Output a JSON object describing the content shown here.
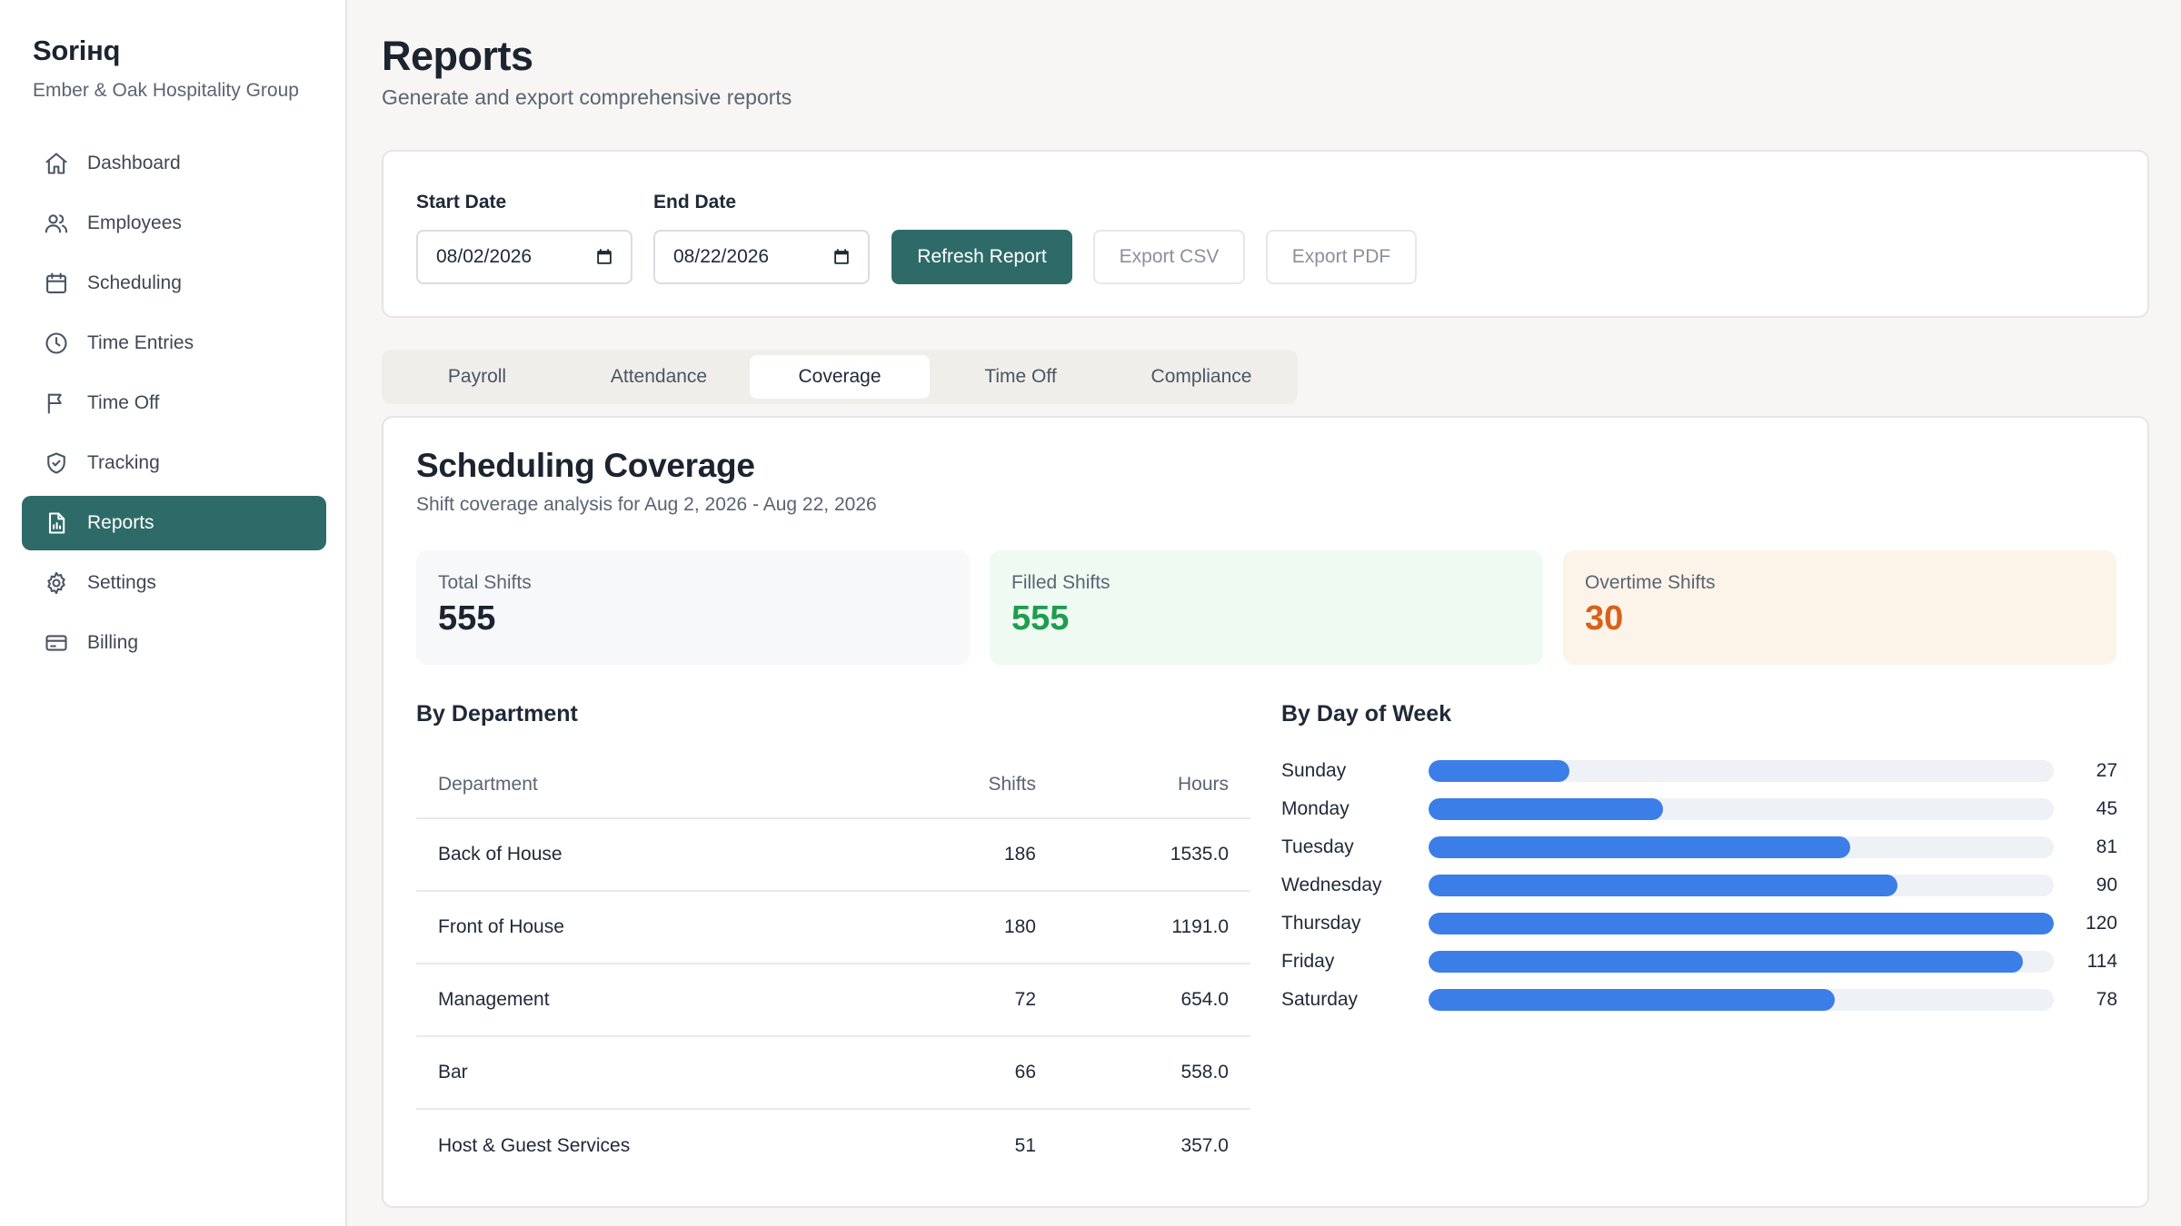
{
  "sidebar": {
    "brand": "Soriнq",
    "org": "Ember & Oak Hospitality Group",
    "items": [
      {
        "label": "Dashboard",
        "icon": "home-icon"
      },
      {
        "label": "Employees",
        "icon": "users-icon"
      },
      {
        "label": "Scheduling",
        "icon": "calendar-icon"
      },
      {
        "label": "Time Entries",
        "icon": "clock-icon"
      },
      {
        "label": "Time Off",
        "icon": "flag-icon"
      },
      {
        "label": "Tracking",
        "icon": "shield-icon"
      },
      {
        "label": "Reports",
        "icon": "file-icon",
        "active": true
      },
      {
        "label": "Settings",
        "icon": "gear-icon"
      },
      {
        "label": "Billing",
        "icon": "card-icon"
      }
    ]
  },
  "header": {
    "title": "Reports",
    "subtitle": "Generate and export comprehensive reports"
  },
  "filters": {
    "start_label": "Start Date",
    "start_value": "08/02/2026",
    "end_label": "End Date",
    "end_value": "08/22/2026",
    "refresh_label": "Refresh Report",
    "export_csv_label": "Export CSV",
    "export_pdf_label": "Export PDF"
  },
  "tabs": [
    {
      "label": "Payroll"
    },
    {
      "label": "Attendance"
    },
    {
      "label": "Coverage",
      "active": true
    },
    {
      "label": "Time Off"
    },
    {
      "label": "Compliance"
    }
  ],
  "report": {
    "title": "Scheduling Coverage",
    "subtitle": "Shift coverage analysis for Aug 2, 2026 - Aug 22, 2026",
    "stats": {
      "total_label": "Total Shifts",
      "total_value": "555",
      "filled_label": "Filled Shifts",
      "filled_value": "555",
      "overtime_label": "Overtime Shifts",
      "overtime_value": "30"
    },
    "by_department": {
      "title": "By Department",
      "headers": {
        "department": "Department",
        "shifts": "Shifts",
        "hours": "Hours"
      },
      "rows": [
        {
          "department": "Back of House",
          "shifts": "186",
          "hours": "1535.0"
        },
        {
          "department": "Front of House",
          "shifts": "180",
          "hours": "1191.0"
        },
        {
          "department": "Management",
          "shifts": "72",
          "hours": "654.0"
        },
        {
          "department": "Bar",
          "shifts": "66",
          "hours": "558.0"
        },
        {
          "department": "Host & Guest Services",
          "shifts": "51",
          "hours": "357.0"
        }
      ]
    },
    "by_day": {
      "title": "By Day of Week",
      "max": 120,
      "bar_color": "#3b7ee8",
      "rows": [
        {
          "day": "Sunday",
          "count": 27
        },
        {
          "day": "Monday",
          "count": 45
        },
        {
          "day": "Tuesday",
          "count": 81
        },
        {
          "day": "Wednesday",
          "count": 90
        },
        {
          "day": "Thursday",
          "count": 120
        },
        {
          "day": "Friday",
          "count": 114
        },
        {
          "day": "Saturday",
          "count": 78
        }
      ]
    }
  },
  "colors": {
    "accent": "#2e6b68",
    "filled_green": "#1f9d4f",
    "overtime_orange": "#d9621a"
  }
}
